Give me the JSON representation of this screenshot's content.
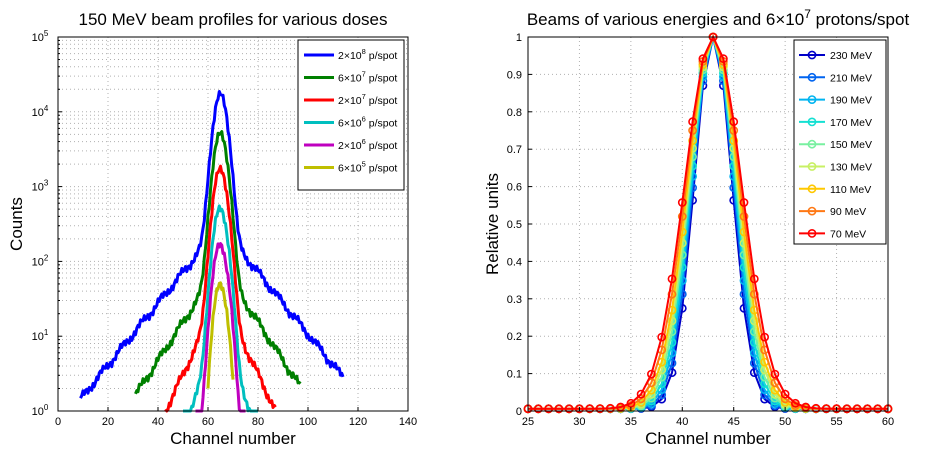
{
  "chart_data": [
    {
      "type": "line",
      "title": "150 MeV beam profiles for various doses",
      "xlabel": "Channel number",
      "ylabel": "Counts",
      "xlim": [
        0,
        140
      ],
      "ylim": [
        1,
        100000
      ],
      "yscale": "log",
      "grid": true,
      "legend_position": "top-right",
      "xticks": [
        "0",
        "20",
        "40",
        "60",
        "80",
        "100",
        "120",
        "140"
      ],
      "yticks": [
        {
          "base": "10",
          "exp": "0"
        },
        {
          "base": "10",
          "exp": "1"
        },
        {
          "base": "10",
          "exp": "2"
        },
        {
          "base": "10",
          "exp": "3"
        },
        {
          "base": "10",
          "exp": "4"
        },
        {
          "base": "10",
          "exp": "5"
        }
      ],
      "series": [
        {
          "legend_pre": "2×10",
          "legend_exp": "8",
          "legend_post": " p/spot",
          "color": "#0000ff",
          "center": 65,
          "peak": 16000,
          "core_width": 2.2,
          "tail_amp": 300,
          "tail_scale": 10.5,
          "extent": [
            9,
            114
          ]
        },
        {
          "legend_pre": "6×10",
          "legend_exp": "7",
          "legend_post": " p/spot",
          "color": "#008000",
          "center": 65,
          "peak": 4800,
          "core_width": 2.2,
          "tail_amp": 90,
          "tail_scale": 8.5,
          "extent": [
            31,
            97
          ]
        },
        {
          "legend_pre": "2×10",
          "legend_exp": "7",
          "legend_post": " p/spot",
          "color": "#ff0000",
          "center": 65,
          "peak": 1600,
          "core_width": 2.2,
          "tail_amp": 35,
          "tail_scale": 6.2,
          "extent": [
            43,
            87
          ]
        },
        {
          "legend_pre": "6×10",
          "legend_exp": "6",
          "legend_post": " p/spot",
          "color": "#00bfbf",
          "center": 65,
          "peak": 480,
          "core_width": 2.2,
          "tail_amp": 12,
          "tail_scale": 4.8,
          "extent": [
            50,
            80
          ]
        },
        {
          "legend_pre": "2×10",
          "legend_exp": "6",
          "legend_post": " p/spot",
          "color": "#bf00bf",
          "center": 65,
          "peak": 160,
          "core_width": 2.2,
          "tail_amp": 5,
          "tail_scale": 3.4,
          "extent": [
            55,
            75
          ]
        },
        {
          "legend_pre": "6×10",
          "legend_exp": "5",
          "legend_post": " p/spot",
          "color": "#bfbf00",
          "center": 65,
          "peak": 48,
          "core_width": 2.0,
          "tail_amp": 2,
          "tail_scale": 2.4,
          "extent": [
            60,
            70
          ]
        }
      ]
    },
    {
      "type": "line",
      "title_pre": "Beams of various energies and 6×10",
      "title_exp": "7",
      "title_post": " protons/spot",
      "xlabel": "Channel number",
      "ylabel": "Relative units",
      "xlim": [
        25,
        60
      ],
      "ylim": [
        0,
        1
      ],
      "grid": true,
      "legend_position": "top-right",
      "markers": "circle",
      "xticks": [
        "25",
        "30",
        "35",
        "40",
        "45",
        "50",
        "55",
        "60"
      ],
      "yticks": [
        "0",
        "0.1",
        "0.2",
        "0.3",
        "0.4",
        "0.5",
        "0.6",
        "0.7",
        "0.8",
        "0.9",
        "1"
      ],
      "series": [
        {
          "name": "230 MeV",
          "color": "#0000c8",
          "center": 43,
          "sigma": 1.85
        },
        {
          "name": "210 MeV",
          "color": "#0064f0",
          "center": 43,
          "sigma": 1.95
        },
        {
          "name": "190 MeV",
          "color": "#00b4f0",
          "center": 43,
          "sigma": 2.05
        },
        {
          "name": "170 MeV",
          "color": "#14e0d2",
          "center": 43,
          "sigma": 2.15
        },
        {
          "name": "150 MeV",
          "color": "#78f0a0",
          "center": 43,
          "sigma": 2.25
        },
        {
          "name": "130 MeV",
          "color": "#c8f064",
          "center": 43,
          "sigma": 2.35
        },
        {
          "name": "110 MeV",
          "color": "#ffc800",
          "center": 43,
          "sigma": 2.45
        },
        {
          "name": "90 MeV",
          "color": "#ff7814",
          "center": 43,
          "sigma": 2.6
        },
        {
          "name": "70 MeV",
          "color": "#ff0000",
          "center": 43,
          "sigma": 2.75
        }
      ]
    }
  ]
}
